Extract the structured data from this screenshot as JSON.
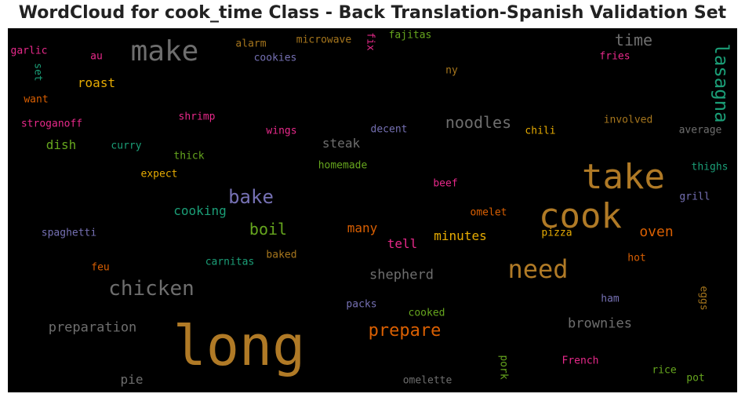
{
  "chart_data": {
    "type": "wordcloud",
    "title": "WordCloud for cook_time Class - Back Translation-Spanish Validation Set",
    "background": "#000000",
    "words": [
      {
        "text": "long",
        "color": "#b07a26"
      },
      {
        "text": "cook",
        "color": "#b07a26"
      },
      {
        "text": "take",
        "color": "#b07a26"
      },
      {
        "text": "make",
        "color": "#6e6e6e"
      },
      {
        "text": "need",
        "color": "#b07a26"
      },
      {
        "text": "chicken",
        "color": "#6e6e6e"
      },
      {
        "text": "lasagna",
        "color": "#1b9e77"
      },
      {
        "text": "bake",
        "color": "#7570b3"
      },
      {
        "text": "prepare",
        "color": "#d95f02"
      },
      {
        "text": "noodles",
        "color": "#6e6e6e"
      },
      {
        "text": "time",
        "color": "#6e6e6e"
      },
      {
        "text": "boil",
        "color": "#66a61e"
      },
      {
        "text": "oven",
        "color": "#d95f02"
      },
      {
        "text": "preparation",
        "color": "#6e6e6e"
      },
      {
        "text": "shepherd",
        "color": "#6e6e6e"
      },
      {
        "text": "brownies",
        "color": "#6e6e6e"
      },
      {
        "text": "minutes",
        "color": "#e6ab02"
      },
      {
        "text": "cooking",
        "color": "#1b9e77"
      },
      {
        "text": "roast",
        "color": "#e6ab02"
      },
      {
        "text": "dish",
        "color": "#66a61e"
      },
      {
        "text": "steak",
        "color": "#6e6e6e"
      },
      {
        "text": "tell",
        "color": "#e7298a"
      },
      {
        "text": "many",
        "color": "#d95f02"
      },
      {
        "text": "pie",
        "color": "#6e6e6e"
      },
      {
        "text": "alarm",
        "color": "#a6761d"
      },
      {
        "text": "microwave",
        "color": "#a6761d"
      },
      {
        "text": "fajitas",
        "color": "#66a61e"
      },
      {
        "text": "fix",
        "color": "#e7298a"
      },
      {
        "text": "fries",
        "color": "#e7298a"
      },
      {
        "text": "garlic",
        "color": "#e7298a"
      },
      {
        "text": "au",
        "color": "#e7298a"
      },
      {
        "text": "cookies",
        "color": "#7570b3"
      },
      {
        "text": "set",
        "color": "#1b9e77"
      },
      {
        "text": "ny",
        "color": "#a6761d"
      },
      {
        "text": "want",
        "color": "#d95f02"
      },
      {
        "text": "stroganoff",
        "color": "#e7298a"
      },
      {
        "text": "shrimp",
        "color": "#e7298a"
      },
      {
        "text": "wings",
        "color": "#e7298a"
      },
      {
        "text": "decent",
        "color": "#7570b3"
      },
      {
        "text": "chili",
        "color": "#e6ab02"
      },
      {
        "text": "involved",
        "color": "#a6761d"
      },
      {
        "text": "average",
        "color": "#6e6e6e"
      },
      {
        "text": "curry",
        "color": "#1b9e77"
      },
      {
        "text": "thick",
        "color": "#66a61e"
      },
      {
        "text": "homemade",
        "color": "#66a61e"
      },
      {
        "text": "expect",
        "color": "#e6ab02"
      },
      {
        "text": "thighs",
        "color": "#1b9e77"
      },
      {
        "text": "beef",
        "color": "#e7298a"
      },
      {
        "text": "grill",
        "color": "#7570b3"
      },
      {
        "text": "omelet",
        "color": "#d95f02"
      },
      {
        "text": "pizza",
        "color": "#e6ab02"
      },
      {
        "text": "spaghetti",
        "color": "#7570b3"
      },
      {
        "text": "carnitas",
        "color": "#1b9e77"
      },
      {
        "text": "baked",
        "color": "#a6761d"
      },
      {
        "text": "feu",
        "color": "#d95f02"
      },
      {
        "text": "hot",
        "color": "#d95f02"
      },
      {
        "text": "packs",
        "color": "#7570b3"
      },
      {
        "text": "cooked",
        "color": "#66a61e"
      },
      {
        "text": "ham",
        "color": "#7570b3"
      },
      {
        "text": "eggs",
        "color": "#a6761d"
      },
      {
        "text": "pork",
        "color": "#66a61e"
      },
      {
        "text": "French",
        "color": "#e7298a"
      },
      {
        "text": "rice",
        "color": "#66a61e"
      },
      {
        "text": "pot",
        "color": "#66a61e"
      },
      {
        "text": "omelette",
        "color": "#6e6e6e"
      }
    ]
  }
}
